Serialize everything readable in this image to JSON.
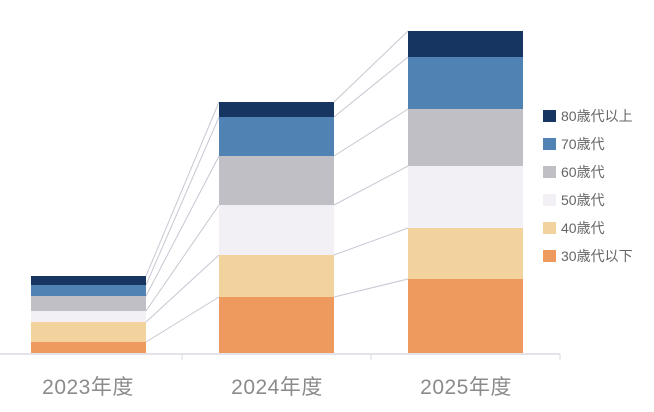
{
  "page": {
    "background": "#ffffff"
  },
  "chart_data": {
    "type": "bar",
    "stacked": true,
    "title": "",
    "xlabel": "",
    "ylabel": "",
    "value_axis_visible": false,
    "grid": false,
    "connectors_between_bars": true,
    "categories": [
      "2023年度",
      "2024年度",
      "2025年度"
    ],
    "series": [
      {
        "name": "30歳代以下",
        "color": "#ee9a5e",
        "values": [
          11,
          56,
          74
        ]
      },
      {
        "name": "40歳代",
        "color": "#f2d39d",
        "values": [
          20,
          42,
          51
        ]
      },
      {
        "name": "50歳代",
        "color": "#f2f0f5",
        "values": [
          11,
          50,
          62
        ]
      },
      {
        "name": "60歳代",
        "color": "#c0bfc5",
        "values": [
          15,
          49,
          57
        ]
      },
      {
        "name": "70歳代",
        "color": "#5082b4",
        "values": [
          11,
          39,
          52
        ]
      },
      {
        "name": "80歳代以上",
        "color": "#163560",
        "values": [
          9,
          15,
          26
        ]
      }
    ],
    "legend": {
      "position": "right",
      "items": [
        {
          "label": "80歳代以上",
          "color": "#163560"
        },
        {
          "label": "70歳代",
          "color": "#5082b4"
        },
        {
          "label": "60歳代",
          "color": "#c0bfc5"
        },
        {
          "label": "50歳代",
          "color": "#f2f0f5"
        },
        {
          "label": "40歳代",
          "color": "#f2d39d"
        },
        {
          "label": "30歳代以下",
          "color": "#ee9a5e"
        }
      ]
    },
    "colors": {
      "axis_line": "#e5e3e9",
      "axis_tick": "#dcdae1",
      "connector_line": "#c9c6d2",
      "category_label": "#8b8b8b",
      "legend_text": "#666666"
    }
  }
}
